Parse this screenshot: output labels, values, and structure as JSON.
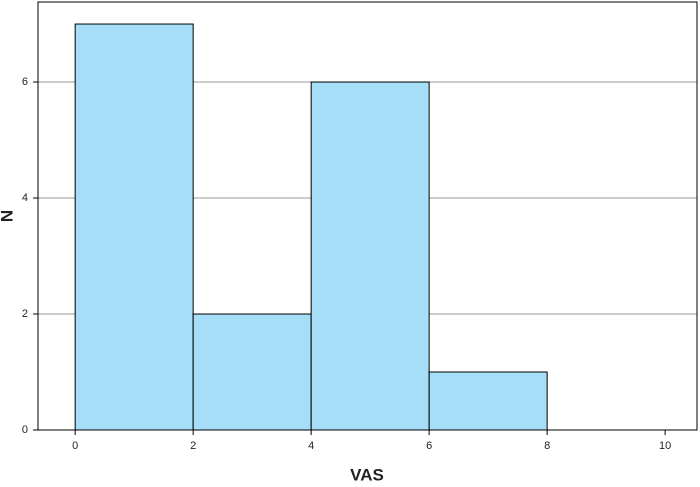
{
  "chart_data": {
    "type": "histogram",
    "x_label": "VAS",
    "y_label": "N",
    "bins": [
      0,
      2,
      4,
      6,
      8
    ],
    "values": [
      7,
      2,
      6,
      1
    ],
    "color": "#a6ddf7",
    "edge_color": "#000000",
    "xlim": [
      -0.63,
      10.54
    ],
    "xticks": [
      0,
      2,
      4,
      6,
      8,
      10
    ],
    "ylim": [
      0,
      7.38
    ],
    "yticks": [
      0,
      2,
      4,
      6
    ],
    "grid": true
  }
}
